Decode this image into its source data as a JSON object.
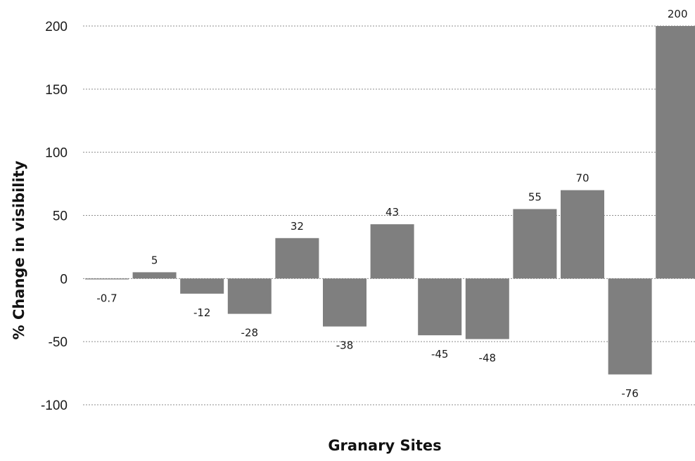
{
  "chart_data": {
    "type": "bar",
    "title": "",
    "xlabel": "Granary Sites",
    "ylabel": "% Change in visibility",
    "ylim": [
      -100,
      200
    ],
    "yticks": [
      -100,
      -50,
      0,
      50,
      100,
      150,
      200
    ],
    "grid": true,
    "legend": "none",
    "bar_color": "#7f7f7f",
    "values": [
      -0.7,
      5,
      -12,
      -28,
      32,
      -38,
      43,
      -45,
      -48,
      55,
      70,
      -76,
      200
    ],
    "data_labels": [
      "-0.7",
      "5",
      "-12",
      "-28",
      "32",
      "-38",
      "43",
      "-45",
      "-48",
      "55",
      "70",
      "-76",
      "200"
    ]
  }
}
